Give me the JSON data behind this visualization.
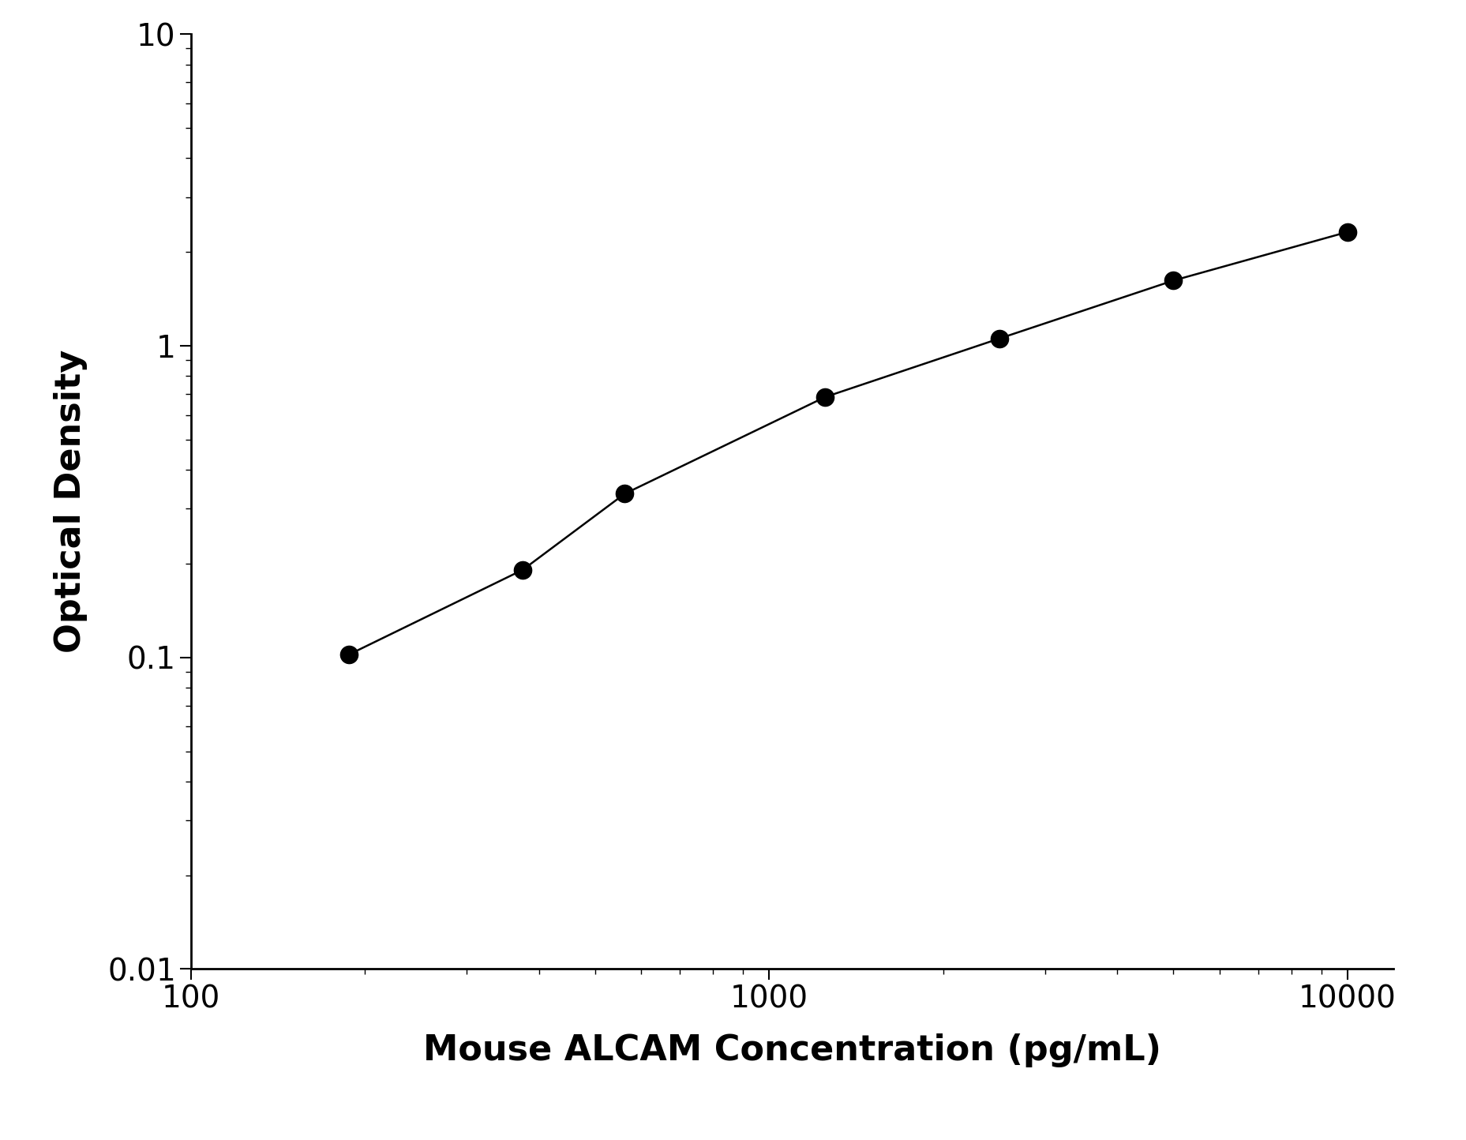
{
  "x_values": [
    187.5,
    375,
    562.5,
    1250,
    2500,
    5000,
    10000
  ],
  "y_values": [
    0.102,
    0.191,
    0.335,
    0.685,
    1.055,
    1.62,
    2.32
  ],
  "xlabel": "Mouse ALCAM Concentration (pg/mL)",
  "ylabel": "Optical Density",
  "xlim": [
    100,
    12000
  ],
  "ylim": [
    0.01,
    10
  ],
  "line_color": "#000000",
  "marker_color": "#000000",
  "marker_size": 16,
  "line_width": 1.8,
  "background_color": "#ffffff",
  "xlabel_fontsize": 32,
  "ylabel_fontsize": 32,
  "tick_fontsize": 28,
  "tick_label_color": "#000000"
}
